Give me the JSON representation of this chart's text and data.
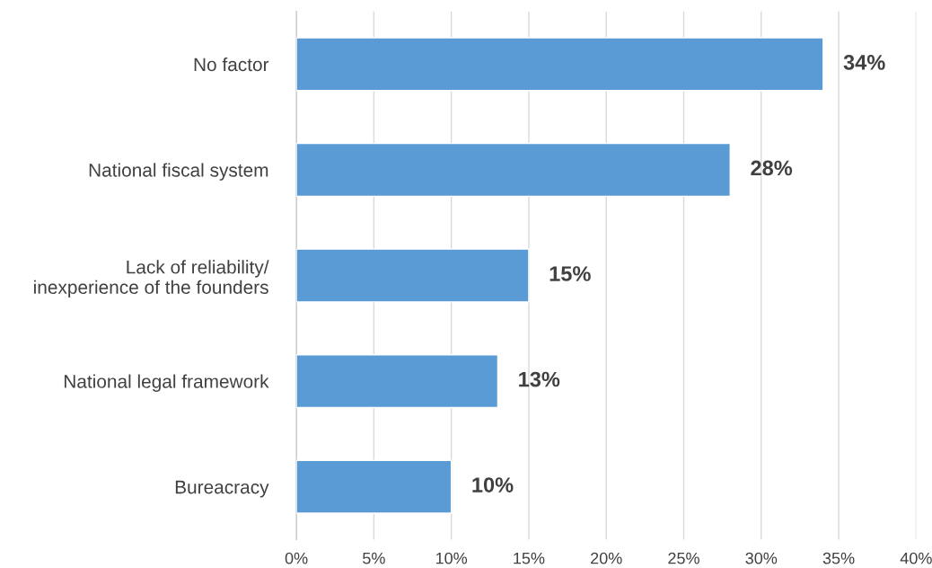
{
  "chart_data": {
    "type": "bar",
    "orientation": "horizontal",
    "categories": [
      "No factor",
      "National fiscal system",
      "Lack of reliability/\ninexperience of the founders",
      "National legal framework",
      "Bureacracy"
    ],
    "values": [
      34,
      28,
      15,
      13,
      10
    ],
    "value_labels": [
      "34%",
      "28%",
      "15%",
      "13%",
      "10%"
    ],
    "color": "#5b9bd5",
    "xlim": [
      0,
      40
    ],
    "xticks": [
      {
        "value": 0,
        "label": "0%"
      },
      {
        "value": 5,
        "label": "5%"
      },
      {
        "value": 10,
        "label": "10%"
      },
      {
        "value": 15,
        "label": "15%"
      },
      {
        "value": 20,
        "label": "20%"
      },
      {
        "value": 25,
        "label": "25%"
      },
      {
        "value": 30,
        "label": "30%"
      },
      {
        "value": 35,
        "label": "35%"
      },
      {
        "value": 40,
        "label": "40%"
      }
    ],
    "grid": "x",
    "legend": false
  }
}
